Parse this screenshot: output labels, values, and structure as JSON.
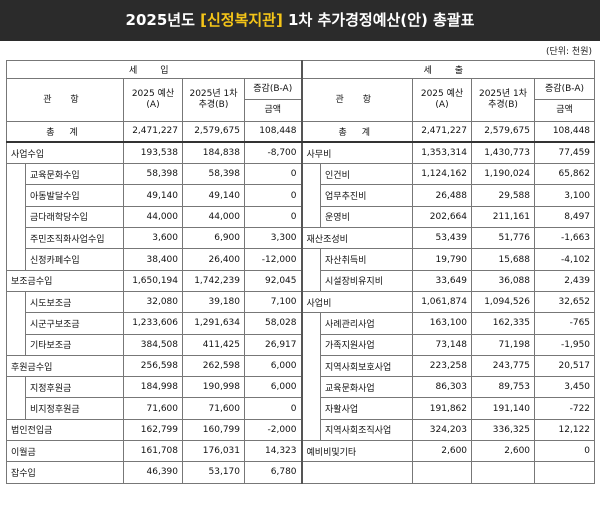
{
  "title": {
    "prefix": "2025년도 ",
    "org": "[신정복지관]",
    "suffix": " 1차  추가경정예산(안)  총괄표"
  },
  "unit": "(단위: 천원)",
  "sections": {
    "revenue": "세 입",
    "expense": "세 출"
  },
  "headers": {
    "item": "관 항",
    "budget": "2025 예산(A)",
    "revised": "2025년 1차추경(B)",
    "change": "증감(B-A)",
    "amount": "금액"
  },
  "rows": [
    {
      "l": {
        "name": "총 계",
        "a": "2,471,227",
        "b": "2,579,675",
        "c": "108,448",
        "lvl": "total"
      },
      "r": {
        "name": "총 계",
        "a": "2,471,227",
        "b": "2,579,675",
        "c": "108,448",
        "lvl": "total"
      }
    },
    {
      "l": {
        "name": "사업수입",
        "a": "193,538",
        "b": "184,838",
        "c": "-8,700",
        "lvl": "0"
      },
      "r": {
        "name": "사무비",
        "a": "1,353,314",
        "b": "1,430,773",
        "c": "77,459",
        "lvl": "0"
      }
    },
    {
      "l": {
        "name": "교육문화수입",
        "a": "58,398",
        "b": "58,398",
        "c": "0",
        "lvl": "1"
      },
      "r": {
        "name": "인건비",
        "a": "1,124,162",
        "b": "1,190,024",
        "c": "65,862",
        "lvl": "1"
      }
    },
    {
      "l": {
        "name": "아동발달수입",
        "a": "49,140",
        "b": "49,140",
        "c": "0",
        "lvl": "1"
      },
      "r": {
        "name": "업무추진비",
        "a": "26,488",
        "b": "29,588",
        "c": "3,100",
        "lvl": "1"
      }
    },
    {
      "l": {
        "name": "금다래학당수입",
        "a": "44,000",
        "b": "44,000",
        "c": "0",
        "lvl": "1"
      },
      "r": {
        "name": "운영비",
        "a": "202,664",
        "b": "211,161",
        "c": "8,497",
        "lvl": "1"
      }
    },
    {
      "l": {
        "name": "주민조직화사업수입",
        "a": "3,600",
        "b": "6,900",
        "c": "3,300",
        "lvl": "1"
      },
      "r": {
        "name": "재산조성비",
        "a": "53,439",
        "b": "51,776",
        "c": "-1,663",
        "lvl": "0"
      }
    },
    {
      "l": {
        "name": "신정카페수입",
        "a": "38,400",
        "b": "26,400",
        "c": "-12,000",
        "lvl": "1"
      },
      "r": {
        "name": "자산취득비",
        "a": "19,790",
        "b": "15,688",
        "c": "-4,102",
        "lvl": "1"
      }
    },
    {
      "l": {
        "name": "보조금수입",
        "a": "1,650,194",
        "b": "1,742,239",
        "c": "92,045",
        "lvl": "0"
      },
      "r": {
        "name": "시설장비유지비",
        "a": "33,649",
        "b": "36,088",
        "c": "2,439",
        "lvl": "1"
      }
    },
    {
      "l": {
        "name": "시도보조금",
        "a": "32,080",
        "b": "39,180",
        "c": "7,100",
        "lvl": "1"
      },
      "r": {
        "name": "사업비",
        "a": "1,061,874",
        "b": "1,094,526",
        "c": "32,652",
        "lvl": "0"
      }
    },
    {
      "l": {
        "name": "시군구보조금",
        "a": "1,233,606",
        "b": "1,291,634",
        "c": "58,028",
        "lvl": "1"
      },
      "r": {
        "name": "사례관리사업",
        "a": "163,100",
        "b": "162,335",
        "c": "-765",
        "lvl": "1"
      }
    },
    {
      "l": {
        "name": "기타보조금",
        "a": "384,508",
        "b": "411,425",
        "c": "26,917",
        "lvl": "1"
      },
      "r": {
        "name": "가족지원사업",
        "a": "73,148",
        "b": "71,198",
        "c": "-1,950",
        "lvl": "1"
      }
    },
    {
      "l": {
        "name": "후원금수입",
        "a": "256,598",
        "b": "262,598",
        "c": "6,000",
        "lvl": "0"
      },
      "r": {
        "name": "지역사회보호사업",
        "a": "223,258",
        "b": "243,775",
        "c": "20,517",
        "lvl": "1"
      }
    },
    {
      "l": {
        "name": "지정후원금",
        "a": "184,998",
        "b": "190,998",
        "c": "6,000",
        "lvl": "1"
      },
      "r": {
        "name": "교육문화사업",
        "a": "86,303",
        "b": "89,753",
        "c": "3,450",
        "lvl": "1"
      }
    },
    {
      "l": {
        "name": "비지정후원금",
        "a": "71,600",
        "b": "71,600",
        "c": "0",
        "lvl": "1"
      },
      "r": {
        "name": "자활사업",
        "a": "191,862",
        "b": "191,140",
        "c": "-722",
        "lvl": "1"
      }
    },
    {
      "l": {
        "name": "법인전입금",
        "a": "162,799",
        "b": "160,799",
        "c": "-2,000",
        "lvl": "0"
      },
      "r": {
        "name": "지역사회조직사업",
        "a": "324,203",
        "b": "336,325",
        "c": "12,122",
        "lvl": "1"
      }
    },
    {
      "l": {
        "name": "이월금",
        "a": "161,708",
        "b": "176,031",
        "c": "14,323",
        "lvl": "0"
      },
      "r": {
        "name": "예비비및기타",
        "a": "2,600",
        "b": "2,600",
        "c": "0",
        "lvl": "0"
      }
    },
    {
      "l": {
        "name": "잡수입",
        "a": "46,390",
        "b": "53,170",
        "c": "6,780",
        "lvl": "0"
      },
      "r": {
        "name": "",
        "a": "",
        "b": "",
        "c": "",
        "lvl": "0"
      }
    }
  ]
}
